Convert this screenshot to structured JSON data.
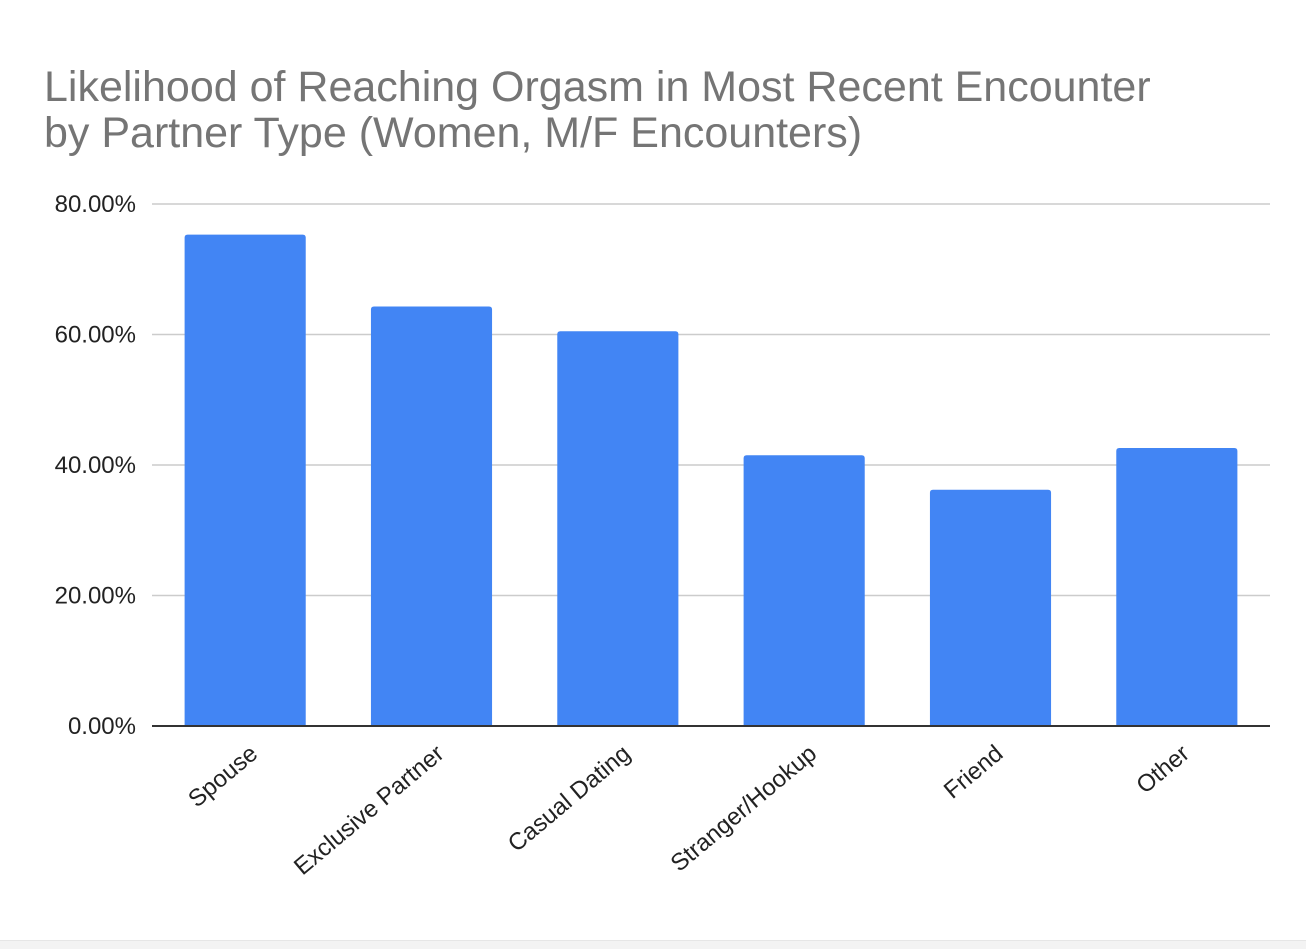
{
  "chart_data": {
    "type": "bar",
    "title_lines": [
      "Likelihood of Reaching Orgasm in Most Recent Encounter",
      "by Partner Type (Women, M/F Encounters)"
    ],
    "categories": [
      "Spouse",
      "Exclusive Partner",
      "Casual Dating",
      "Stranger/Hookup",
      "Friend",
      "Other"
    ],
    "values": [
      75.3,
      64.3,
      60.5,
      41.5,
      36.2,
      42.6
    ],
    "value_unit": "%",
    "ylim": [
      0,
      80
    ],
    "yticks": [
      0,
      20,
      40,
      60,
      80
    ],
    "ytick_labels": [
      "0.00%",
      "20.00%",
      "40.00%",
      "60.00%",
      "80.00%"
    ],
    "grid": true,
    "legend": "none",
    "bar_color": "#4285f4"
  }
}
